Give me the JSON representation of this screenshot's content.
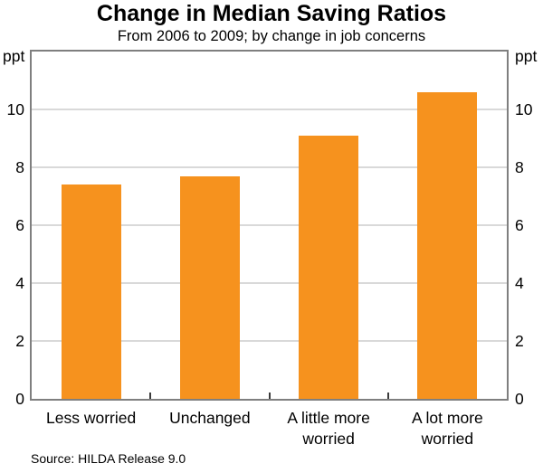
{
  "title": "Change in Median Saving Ratios",
  "subtitle": "From 2006 to 2009; by change in job concerns",
  "source": "Source: HILDA Release 9.0",
  "axis_unit": "ppt",
  "colors": {
    "bar": "#F6921E",
    "frame": "#7F7F7F",
    "gridline": "#D9D9D9",
    "separator_tick": "#3A3A3A",
    "text": "#000000"
  },
  "chart_data": {
    "type": "bar",
    "categories": [
      "Less worried",
      "Unchanged",
      "A little more\nworried",
      "A lot more\nworried"
    ],
    "values": [
      7.4,
      7.7,
      9.1,
      10.6
    ],
    "title": "Change in Median Saving Ratios",
    "subtitle": "From 2006 to 2009; by change in job concerns",
    "xlabel": "",
    "ylabel": "ppt",
    "ylim": [
      0,
      12
    ],
    "yticks": [
      0,
      2,
      4,
      6,
      8,
      10
    ],
    "ytick_side": "both",
    "grid": true,
    "legend": false,
    "bar_color": "#F6921E",
    "source": "Source: HILDA Release 9.0"
  }
}
